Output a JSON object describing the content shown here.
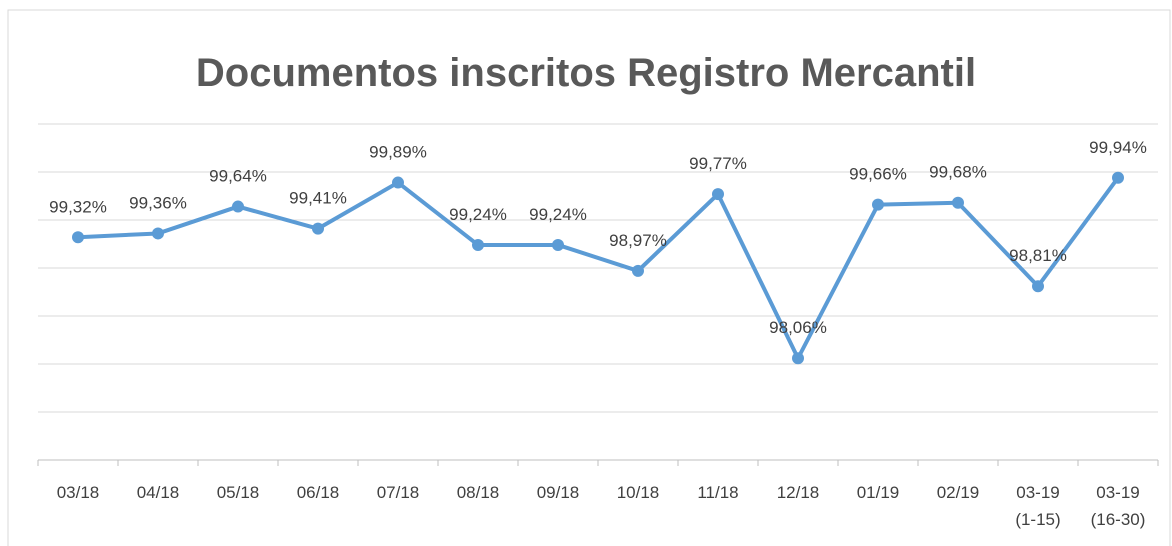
{
  "chart_data": {
    "type": "line",
    "title": "Documentos inscritos Registro Mercantil",
    "categories": [
      "03/18",
      "04/18",
      "05/18",
      "06/18",
      "07/18",
      "08/18",
      "09/18",
      "10/18",
      "11/18",
      "12/18",
      "01/19",
      "02/19",
      "03-19 (1-15)",
      "03-19 (16-30)"
    ],
    "series": [
      {
        "color": "#5b9bd5",
        "values": [
          99.32,
          99.36,
          99.64,
          99.41,
          99.89,
          99.24,
          99.24,
          98.97,
          99.77,
          98.06,
          99.66,
          99.68,
          98.81,
          99.94
        ],
        "value_labels": [
          "99,32%",
          "99,36%",
          "99,64%",
          "99,41%",
          "99,89%",
          "99,24%",
          "99,24%",
          "98,97%",
          "99,77%",
          "98,06%",
          "99,66%",
          "99,68%",
          "98,81%",
          "99,94%"
        ]
      }
    ],
    "ylim": [
      97,
      100.5
    ],
    "yticks": [
      97,
      97.5,
      98,
      98.5,
      99,
      99.5,
      100,
      100.5
    ],
    "grid": true
  }
}
